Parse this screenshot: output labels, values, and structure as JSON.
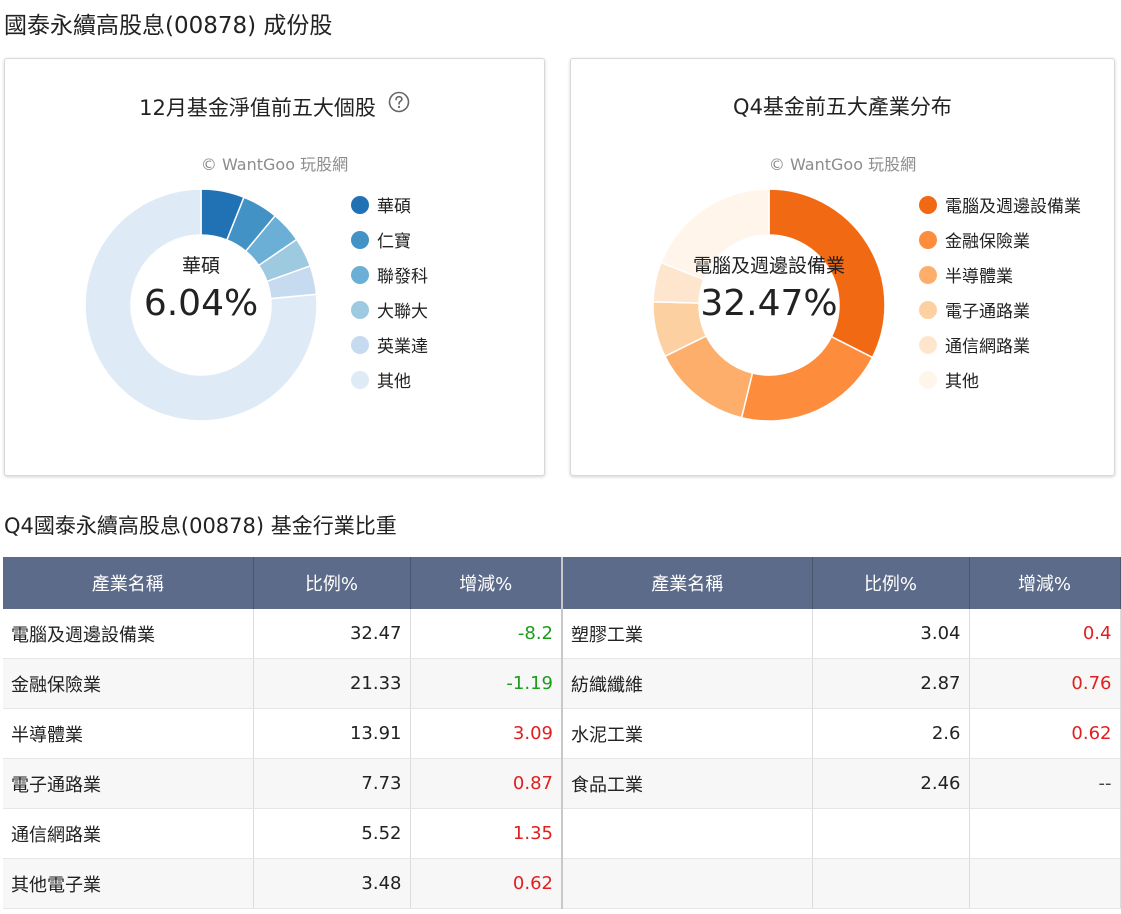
{
  "page_title": "國泰永續高股息(00878) 成份股",
  "watermark": "© WantGoo 玩股網",
  "holdings_card": {
    "title": "12月基金淨值前五大個股",
    "center_label": "華碩",
    "center_value": "6.04%",
    "legend": [
      {
        "label": "華碩",
        "color": "#2171b5"
      },
      {
        "label": "仁寶",
        "color": "#4292c6"
      },
      {
        "label": "聯發科",
        "color": "#6baed6"
      },
      {
        "label": "大聯大",
        "color": "#9ecae1"
      },
      {
        "label": "英業達",
        "color": "#c6dbef"
      },
      {
        "label": "其他",
        "color": "#deebf7"
      }
    ]
  },
  "industry_card": {
    "title": "Q4基金前五大產業分布",
    "center_label": "電腦及週邊設備業",
    "center_value": "32.47%",
    "legend": [
      {
        "label": "電腦及週邊設備業",
        "color": "#f16913"
      },
      {
        "label": "金融保險業",
        "color": "#fd8d3c"
      },
      {
        "label": "半導體業",
        "color": "#fdae6b"
      },
      {
        "label": "電子通路業",
        "color": "#fdd0a2"
      },
      {
        "label": "通信網路業",
        "color": "#fee6ce"
      },
      {
        "label": "其他",
        "color": "#fff5eb"
      }
    ]
  },
  "chart_data": [
    {
      "type": "pie",
      "title": "12月基金淨值前五大個股",
      "categories": [
        "華碩",
        "仁寶",
        "聯發科",
        "大聯大",
        "英業達",
        "其他"
      ],
      "values": [
        6.04,
        5.0,
        4.4,
        4.1,
        4.0,
        76.46
      ],
      "colors": [
        "#2171b5",
        "#4292c6",
        "#6baed6",
        "#9ecae1",
        "#c6dbef",
        "#deebf7"
      ],
      "legend_position": "right"
    },
    {
      "type": "pie",
      "title": "Q4基金前五大產業分布",
      "categories": [
        "電腦及週邊設備業",
        "金融保險業",
        "半導體業",
        "電子通路業",
        "通信網路業",
        "其他"
      ],
      "values": [
        32.47,
        21.33,
        13.91,
        7.73,
        5.52,
        19.04
      ],
      "colors": [
        "#f16913",
        "#fd8d3c",
        "#fdae6b",
        "#fdd0a2",
        "#fee6ce",
        "#fff5eb"
      ],
      "legend_position": "right"
    }
  ],
  "table": {
    "title": "Q4國泰永續高股息(00878) 基金行業比重",
    "headers": [
      "產業名稱",
      "比例%",
      "增減%",
      "產業名稱",
      "比例%",
      "增減%"
    ],
    "rows": [
      [
        {
          "v": "電腦及週邊設備業"
        },
        {
          "v": "32.47"
        },
        {
          "v": "-8.2",
          "c": "neg"
        },
        {
          "v": "塑膠工業"
        },
        {
          "v": "3.04"
        },
        {
          "v": "0.4",
          "c": "pos"
        }
      ],
      [
        {
          "v": "金融保險業"
        },
        {
          "v": "21.33"
        },
        {
          "v": "-1.19",
          "c": "neg"
        },
        {
          "v": "紡織纖維"
        },
        {
          "v": "2.87"
        },
        {
          "v": "0.76",
          "c": "pos"
        }
      ],
      [
        {
          "v": "半導體業"
        },
        {
          "v": "13.91"
        },
        {
          "v": "3.09",
          "c": "pos"
        },
        {
          "v": "水泥工業"
        },
        {
          "v": "2.6"
        },
        {
          "v": "0.62",
          "c": "pos"
        }
      ],
      [
        {
          "v": "電子通路業"
        },
        {
          "v": "7.73"
        },
        {
          "v": "0.87",
          "c": "pos"
        },
        {
          "v": "食品工業"
        },
        {
          "v": "2.46"
        },
        {
          "v": "--",
          "c": "na"
        }
      ],
      [
        {
          "v": "通信網路業"
        },
        {
          "v": "5.52"
        },
        {
          "v": "1.35",
          "c": "pos"
        },
        {
          "v": ""
        },
        {
          "v": ""
        },
        {
          "v": ""
        }
      ],
      [
        {
          "v": "其他電子業"
        },
        {
          "v": "3.48"
        },
        {
          "v": "0.62",
          "c": "pos"
        },
        {
          "v": ""
        },
        {
          "v": ""
        },
        {
          "v": ""
        }
      ]
    ]
  }
}
